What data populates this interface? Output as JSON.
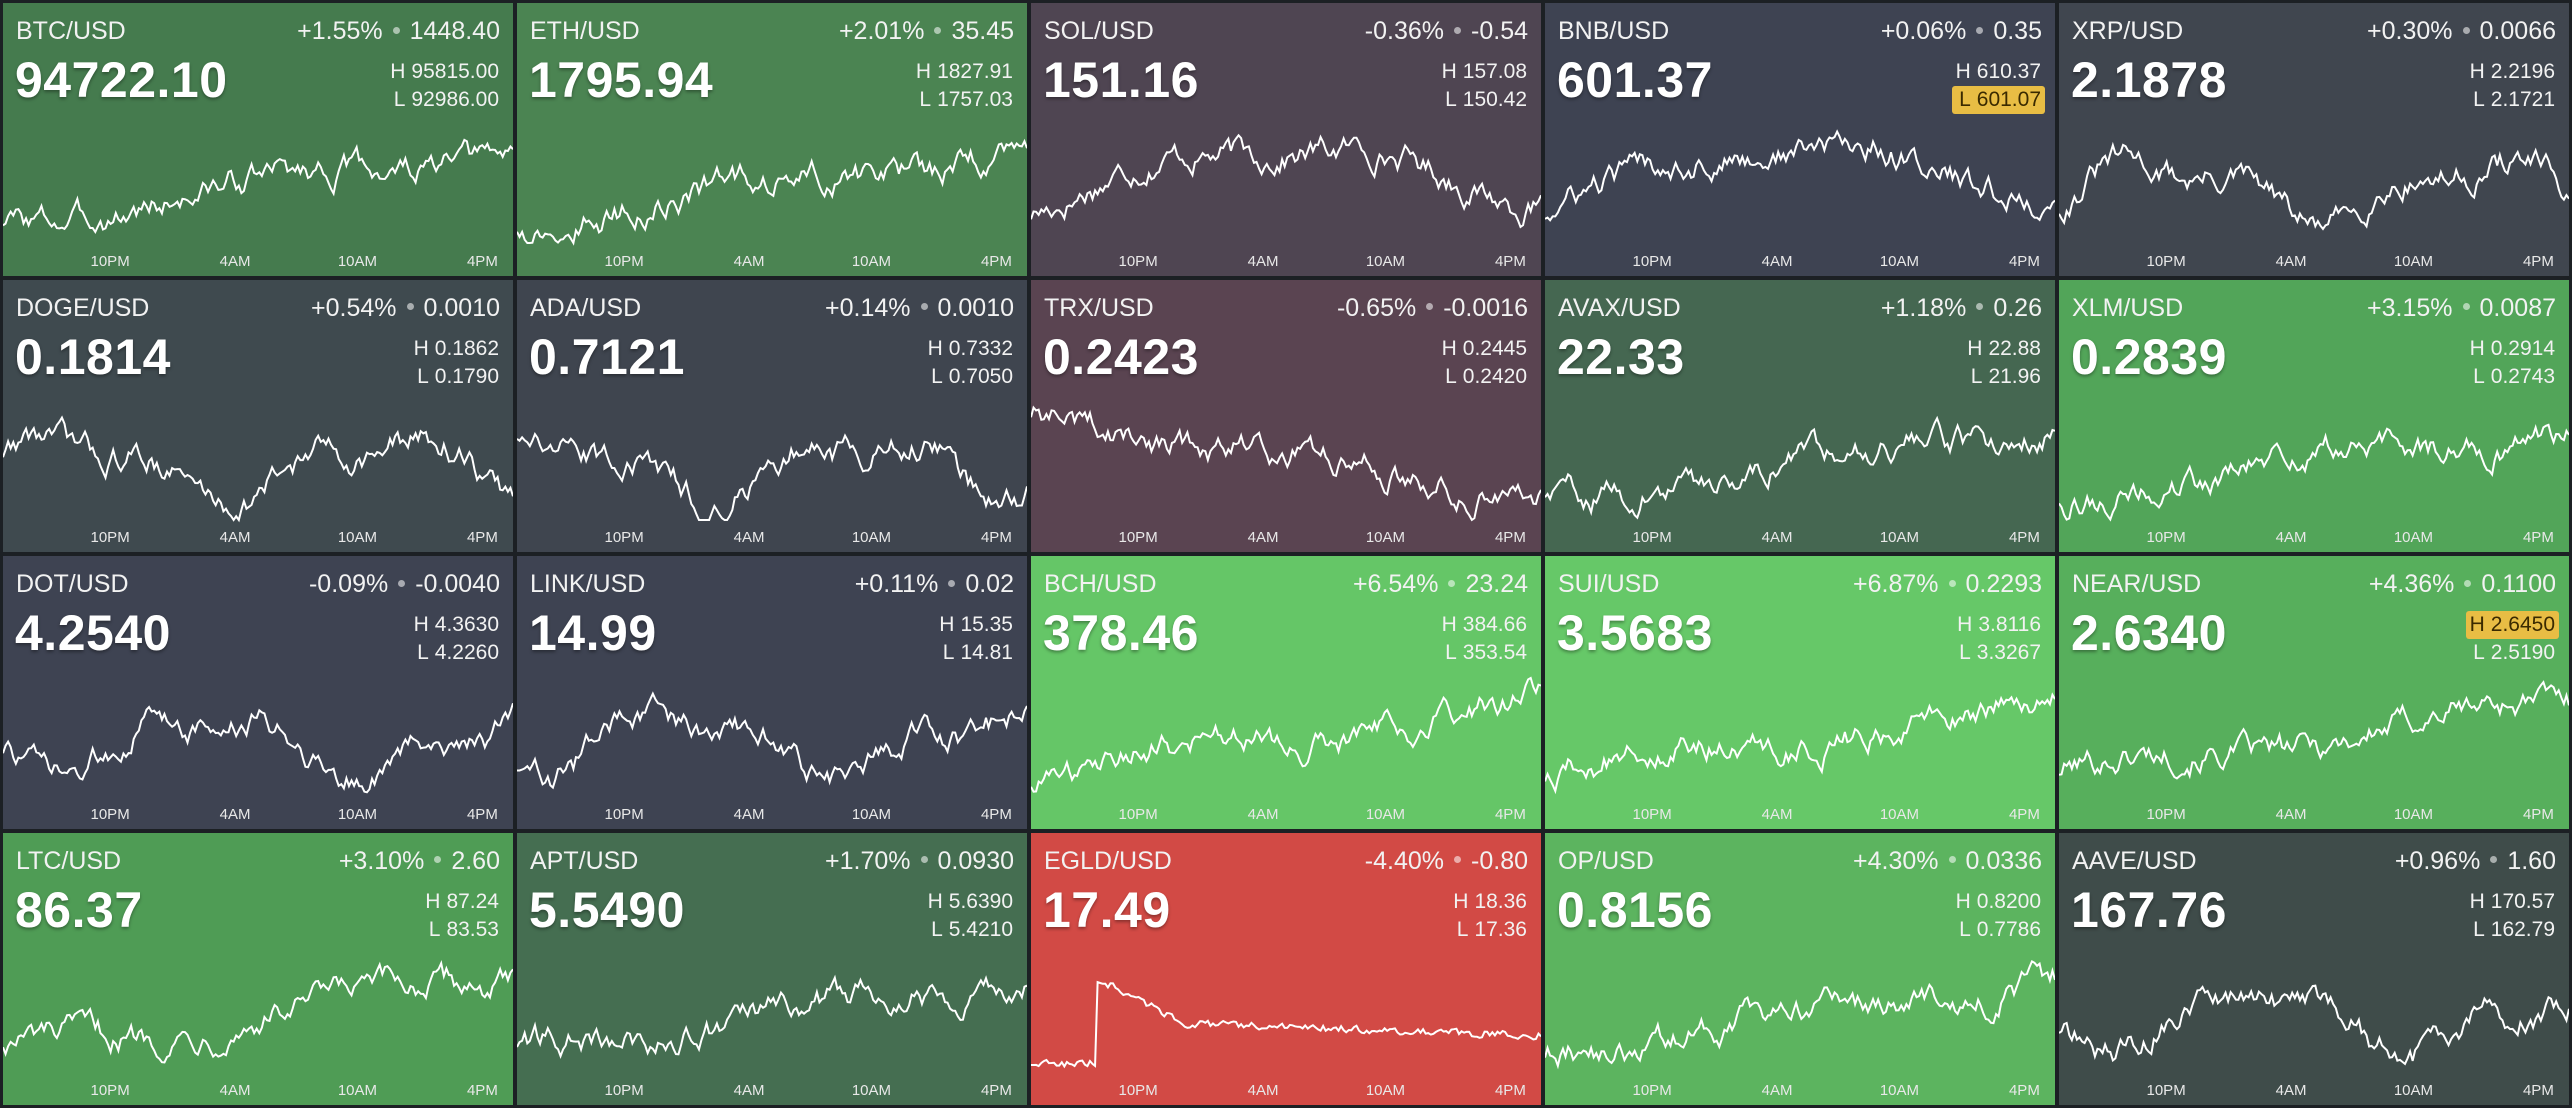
{
  "time_labels": [
    "10PM",
    "4AM",
    "10AM",
    "4PM"
  ],
  "tiles": [
    {
      "pair": "BTC/USD",
      "pct": "+1.55%",
      "abs": "1448.40",
      "price": "94722.10",
      "high": "95815.00",
      "low": "92986.00",
      "highlight": "",
      "bg": "#457b4e",
      "shape": "up"
    },
    {
      "pair": "ETH/USD",
      "pct": "+2.01%",
      "abs": "35.45",
      "price": "1795.94",
      "high": "1827.91",
      "low": "1757.03",
      "highlight": "",
      "bg": "#4b8452",
      "shape": "up"
    },
    {
      "pair": "SOL/USD",
      "pct": "-0.36%",
      "abs": "-0.54",
      "price": "151.16",
      "high": "157.08",
      "low": "150.42",
      "highlight": "",
      "bg": "#4f4552",
      "shape": "hump"
    },
    {
      "pair": "BNB/USD",
      "pct": "+0.06%",
      "abs": "0.35",
      "price": "601.37",
      "high": "610.37",
      "low": "601.07",
      "highlight": "low",
      "bg": "#3e4352",
      "shape": "hump"
    },
    {
      "pair": "XRP/USD",
      "pct": "+0.30%",
      "abs": "0.0066",
      "price": "2.1878",
      "high": "2.2196",
      "low": "2.1721",
      "highlight": "",
      "bg": "#40464f",
      "shape": "wave"
    },
    {
      "pair": "DOGE/USD",
      "pct": "+0.54%",
      "abs": "0.0010",
      "price": "0.1814",
      "high": "0.1862",
      "low": "0.1790",
      "highlight": "",
      "bg": "#3f4a4f",
      "shape": "wave"
    },
    {
      "pair": "ADA/USD",
      "pct": "+0.14%",
      "abs": "0.0010",
      "price": "0.7121",
      "high": "0.7332",
      "low": "0.7050",
      "highlight": "",
      "bg": "#3f454f",
      "shape": "wave"
    },
    {
      "pair": "TRX/USD",
      "pct": "-0.65%",
      "abs": "-0.0016",
      "price": "0.2423",
      "high": "0.2445",
      "low": "0.2420",
      "highlight": "",
      "bg": "#5a4451",
      "shape": "down"
    },
    {
      "pair": "AVAX/USD",
      "pct": "+1.18%",
      "abs": "0.26",
      "price": "22.33",
      "high": "22.88",
      "low": "21.96",
      "highlight": "",
      "bg": "#456751",
      "shape": "up"
    },
    {
      "pair": "XLM/USD",
      "pct": "+3.15%",
      "abs": "0.0087",
      "price": "0.2839",
      "high": "0.2914",
      "low": "0.2743",
      "highlight": "",
      "bg": "#52a559",
      "shape": "up"
    },
    {
      "pair": "DOT/USD",
      "pct": "-0.09%",
      "abs": "-0.0040",
      "price": "4.2540",
      "high": "4.3630",
      "low": "4.2260",
      "highlight": "",
      "bg": "#3e4352",
      "shape": "wave"
    },
    {
      "pair": "LINK/USD",
      "pct": "+0.11%",
      "abs": "0.02",
      "price": "14.99",
      "high": "15.35",
      "low": "14.81",
      "highlight": "",
      "bg": "#3e4352",
      "shape": "wave"
    },
    {
      "pair": "BCH/USD",
      "pct": "+6.54%",
      "abs": "23.24",
      "price": "378.46",
      "high": "384.66",
      "low": "353.54",
      "highlight": "",
      "bg": "#65c667",
      "shape": "up"
    },
    {
      "pair": "SUI/USD",
      "pct": "+6.87%",
      "abs": "0.2293",
      "price": "3.5683",
      "high": "3.8116",
      "low": "3.3267",
      "highlight": "",
      "bg": "#66c868",
      "shape": "up"
    },
    {
      "pair": "NEAR/USD",
      "pct": "+4.36%",
      "abs": "0.1100",
      "price": "2.6340",
      "high": "2.6450",
      "low": "2.5190",
      "highlight": "high",
      "bg": "#57af5c",
      "shape": "up"
    },
    {
      "pair": "LTC/USD",
      "pct": "+3.10%",
      "abs": "2.60",
      "price": "86.37",
      "high": "87.24",
      "low": "83.53",
      "highlight": "",
      "bg": "#4f9c55",
      "shape": "up"
    },
    {
      "pair": "APT/USD",
      "pct": "+1.70%",
      "abs": "0.0930",
      "price": "5.5490",
      "high": "5.6390",
      "low": "5.4210",
      "highlight": "",
      "bg": "#456e51",
      "shape": "up"
    },
    {
      "pair": "EGLD/USD",
      "pct": "-4.40%",
      "abs": "-0.80",
      "price": "17.49",
      "high": "18.36",
      "low": "17.36",
      "highlight": "",
      "bg": "#d24a45",
      "shape": "spike"
    },
    {
      "pair": "OP/USD",
      "pct": "+4.30%",
      "abs": "0.0336",
      "price": "0.8156",
      "high": "0.8200",
      "low": "0.7786",
      "highlight": "",
      "bg": "#5cb45f",
      "shape": "up"
    },
    {
      "pair": "AAVE/USD",
      "pct": "+0.96%",
      "abs": "1.60",
      "price": "167.76",
      "high": "170.57",
      "low": "162.79",
      "highlight": "",
      "bg": "#3f4c4a",
      "shape": "wave"
    }
  ]
}
